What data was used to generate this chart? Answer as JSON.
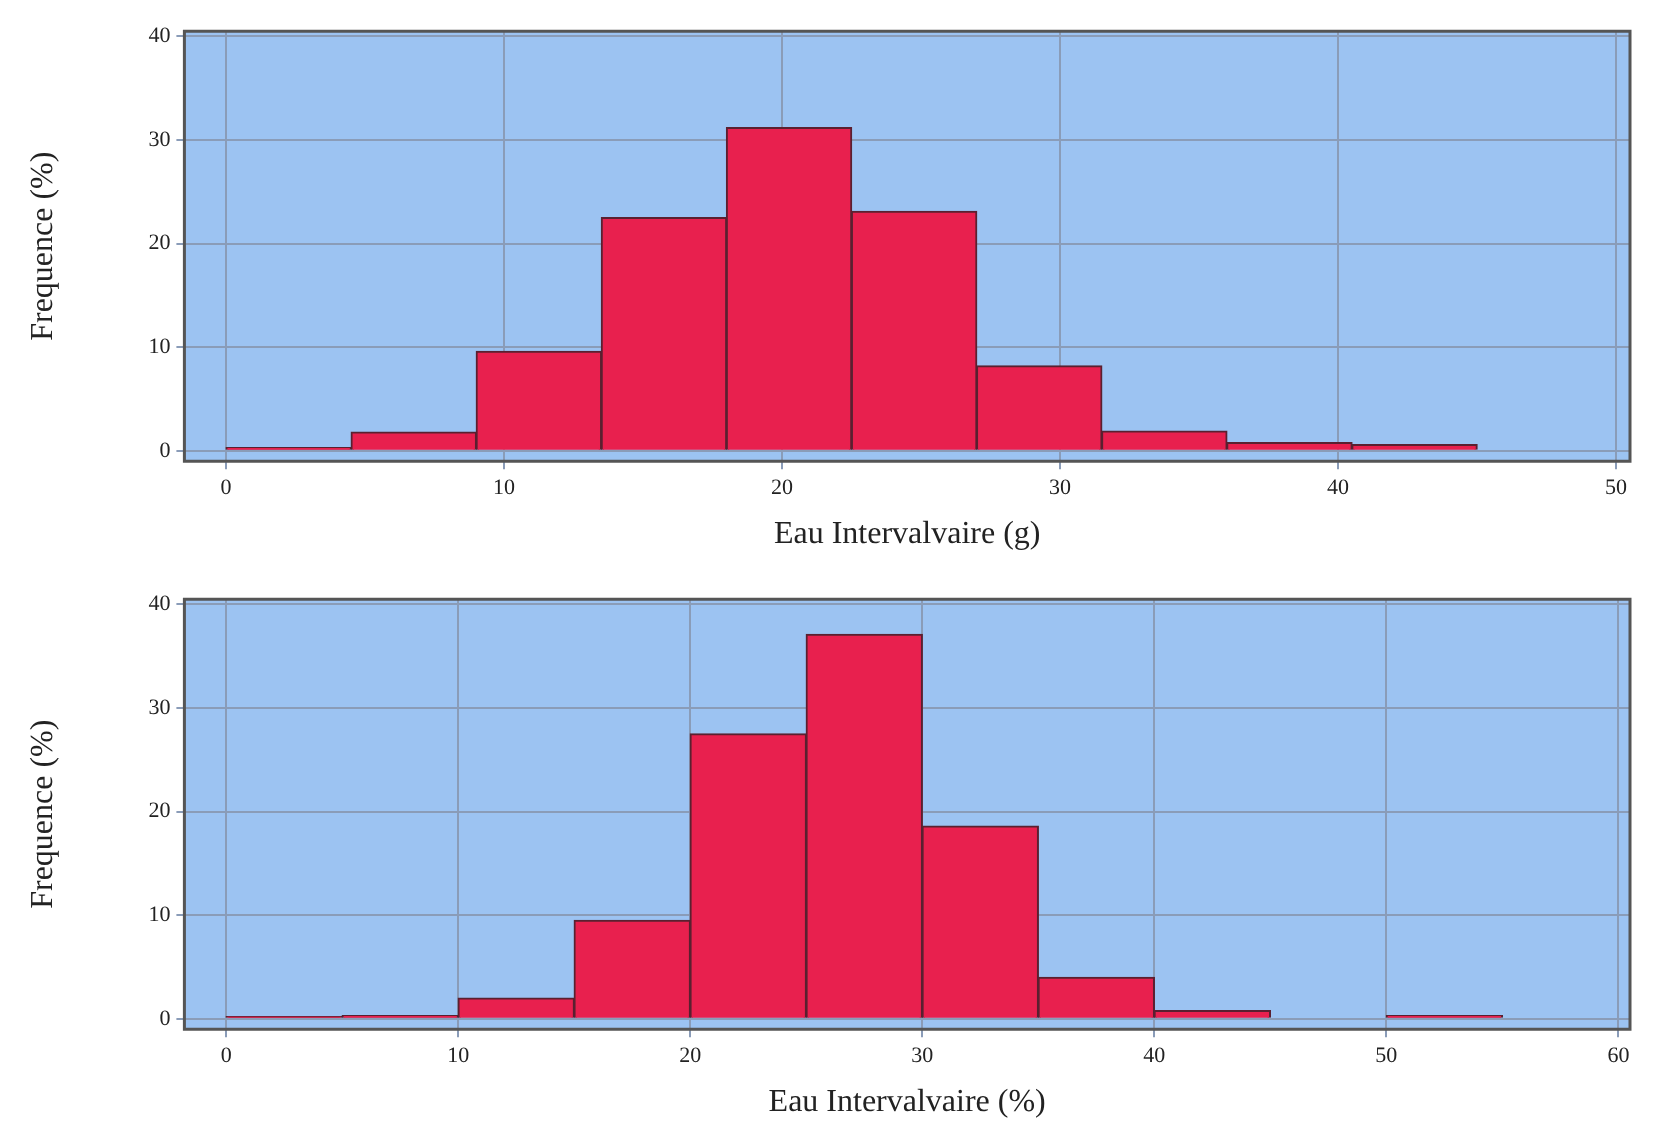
{
  "chart_data": [
    {
      "type": "histogram",
      "xlabel": "Eau Intervalvaire (g)",
      "ylabel": "Frequence (%)",
      "bins": [
        0,
        4.5,
        9,
        13.5,
        18,
        22.5,
        27,
        31.5,
        36,
        40.5,
        45
      ],
      "values": [
        0.3,
        1.8,
        9.6,
        22.5,
        31.2,
        23.1,
        8.2,
        1.9,
        0.8,
        0.6
      ],
      "color": "#e8204e",
      "xlim": [
        -1.5,
        50.5
      ],
      "xticks": [
        0,
        10,
        20,
        30,
        40,
        50
      ],
      "ylim": [
        -1,
        40.5
      ],
      "yticks": [
        0,
        10,
        20,
        30,
        40
      ],
      "grid": true
    },
    {
      "type": "histogram",
      "xlabel": "Eau Intervalvaire (%)",
      "ylabel": "Frequence (%)",
      "bins": [
        0,
        5,
        10,
        15,
        20,
        25,
        30,
        35,
        40,
        45,
        50,
        55,
        60
      ],
      "values": [
        0.2,
        0.3,
        2,
        9.5,
        27.5,
        37.1,
        18.6,
        4,
        0.8,
        0,
        0.3,
        0
      ],
      "color": "#e8204e",
      "xlim": [
        -1.8,
        60.5
      ],
      "xticks": [
        0,
        10,
        20,
        30,
        40,
        50,
        60
      ],
      "ylim": [
        -1,
        40.5
      ],
      "yticks": [
        0,
        10,
        20,
        30,
        40
      ],
      "grid": true
    }
  ]
}
